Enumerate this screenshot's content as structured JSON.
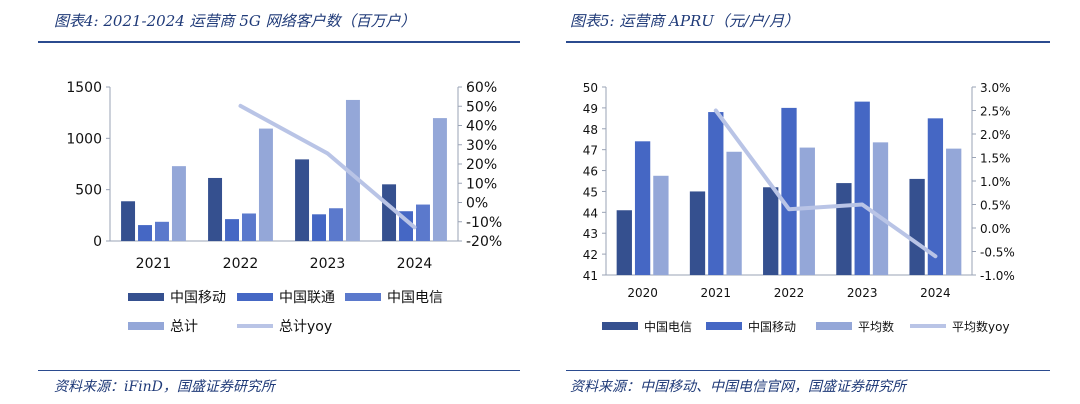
{
  "left": {
    "caption": "图表4:  2021-2024 运营商 5G 网络客户数（百万户）",
    "source": "资料来源：iFinD，国盛证券研究所"
  },
  "right": {
    "caption": "图表5:  运营商 APRU（元/户/月）",
    "source": "资料来源：中国移动、中国电信官网，国盛证券研究所"
  },
  "colors": {
    "navy": "#35508f",
    "mid": "#4567c4",
    "blue": "#5b79cc",
    "light": "#94a7d8",
    "line": "#b9c4e6",
    "rule": "#2b4b8f"
  },
  "chart_data": [
    {
      "type": "bar",
      "categories": [
        "2021",
        "2022",
        "2023",
        "2024"
      ],
      "series": [
        {
          "name": "中国移动",
          "values": [
            387,
            614,
            795,
            552
          ],
          "axis": "left",
          "color": "#35508f"
        },
        {
          "name": "中国联通",
          "values": [
            155,
            213,
            260,
            290
          ],
          "axis": "left",
          "color": "#4567c4"
        },
        {
          "name": "中国电信",
          "values": [
            187,
            268,
            319,
            355
          ],
          "axis": "left",
          "color": "#5b79cc"
        },
        {
          "name": "总计",
          "values": [
            729,
            1095,
            1374,
            1197
          ],
          "axis": "left",
          "color": "#94a7d8"
        },
        {
          "name": "总计yoy",
          "type": "line",
          "values": [
            null,
            50.2,
            25.5,
            -12.9
          ],
          "axis": "right",
          "color": "#b9c4e6"
        }
      ],
      "y_left": {
        "min": 0,
        "max": 1500,
        "ticks": [
          0,
          500,
          1000,
          1500
        ]
      },
      "y_right": {
        "min": -20,
        "max": 60,
        "unit": "%",
        "ticks": [
          -20,
          -10,
          0,
          10,
          20,
          30,
          40,
          50,
          60
        ]
      },
      "legend_position": "bottom",
      "grid": false
    },
    {
      "type": "bar",
      "categories": [
        "2020",
        "2021",
        "2022",
        "2023",
        "2024"
      ],
      "series": [
        {
          "name": "中国电信",
          "values": [
            44.1,
            45.0,
            45.2,
            45.4,
            45.6
          ],
          "axis": "left",
          "color": "#35508f"
        },
        {
          "name": "中国移动",
          "values": [
            47.4,
            48.8,
            49.0,
            49.3,
            48.5
          ],
          "axis": "left",
          "color": "#4567c4"
        },
        {
          "name": "平均数",
          "values": [
            45.75,
            46.9,
            47.1,
            47.35,
            47.05
          ],
          "axis": "left",
          "color": "#94a7d8"
        },
        {
          "name": "平均数yoy",
          "type": "line",
          "values": [
            null,
            2.5,
            0.4,
            0.5,
            -0.6
          ],
          "axis": "right",
          "color": "#b9c4e6"
        }
      ],
      "y_left": {
        "min": 41,
        "max": 50,
        "ticks": [
          41,
          42,
          43,
          44,
          45,
          46,
          47,
          48,
          49,
          50
        ]
      },
      "y_right": {
        "min": -1.0,
        "max": 3.0,
        "unit": "%",
        "ticks": [
          -1.0,
          -0.5,
          0.0,
          0.5,
          1.0,
          1.5,
          2.0,
          2.5,
          3.0
        ]
      },
      "legend_position": "bottom",
      "grid": false
    }
  ]
}
